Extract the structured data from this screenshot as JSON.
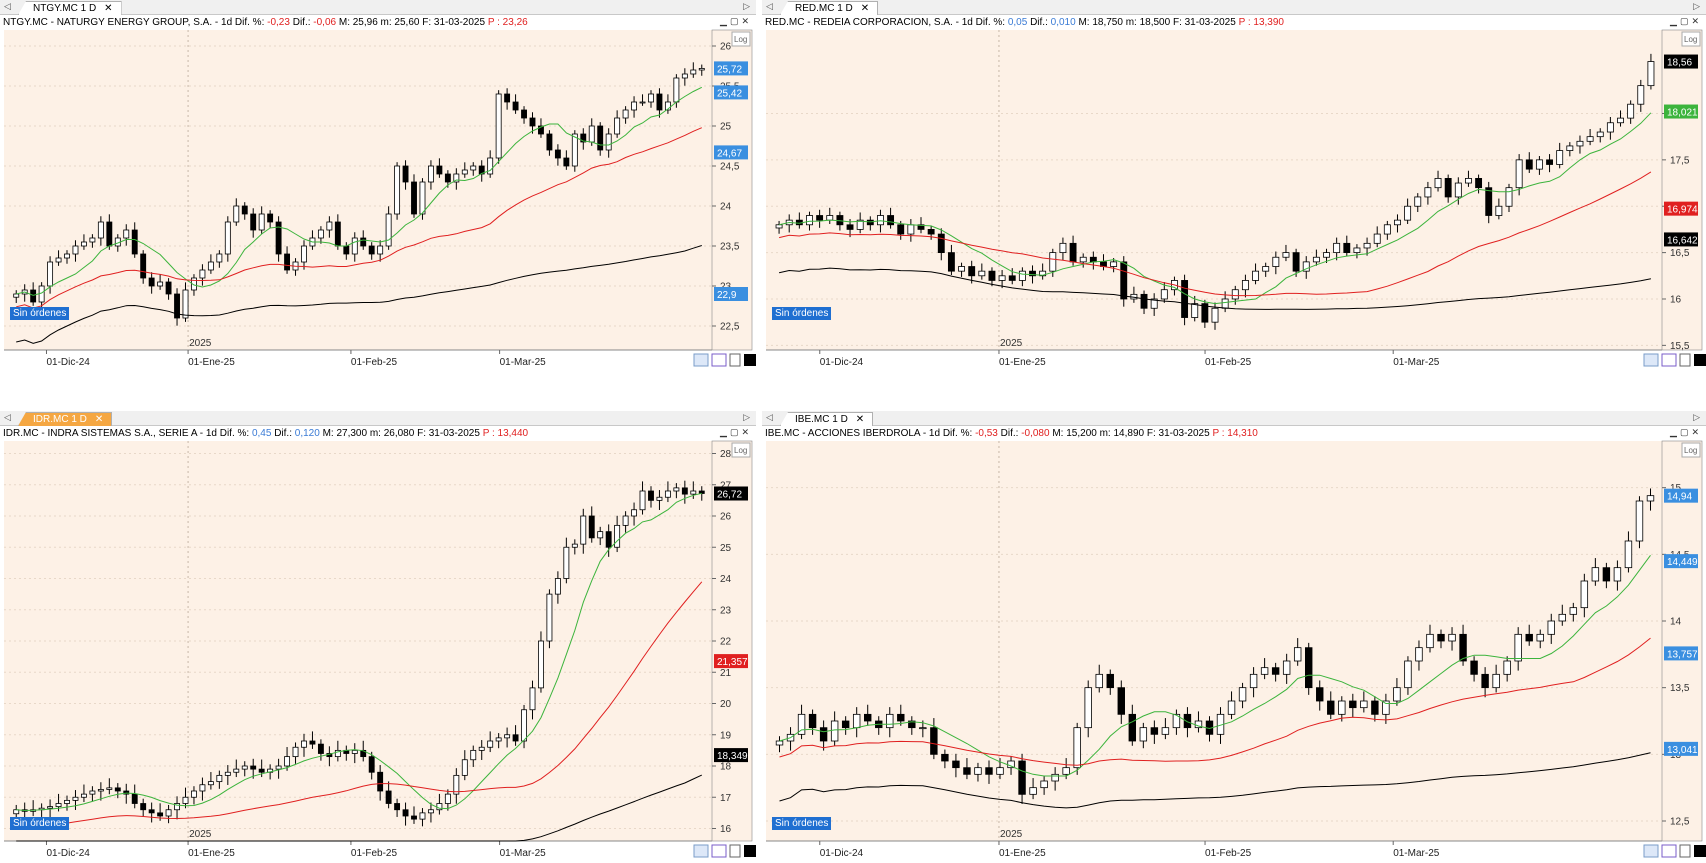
{
  "panels": [
    {
      "tab_label": "NTGY.MC 1 D",
      "tab_active": false,
      "info": {
        "prefix": "NTGY.MC - NATURGY ENERGY GROUP, S.A. -  1d  Dif. %:",
        "dif_pct": "-0,23",
        "dif_label": "Dif.:",
        "dif": "-0,06",
        "rest": "M: 25,96  m: 25,60  F: 31-03-2025",
        "p_label": "P : 23,26"
      },
      "price_tags": [
        {
          "text": "25,72",
          "color": "#3a8fe0"
        },
        {
          "text": "25,42",
          "color": "#3a8fe0"
        },
        {
          "text": "24,67",
          "color": "#3a8fe0"
        },
        {
          "text": "22,9",
          "color": "#3a8fe0"
        }
      ],
      "sin_ordenes": "Sin órdenes",
      "log_label": "Log",
      "chart_data": {
        "type": "candlestick",
        "y_axis_ticks": [
          "26",
          "25,5",
          "25",
          "24,5",
          "24",
          "23,5",
          "23",
          "22,5"
        ],
        "x_axis_labels": [
          "01-Dic-24",
          "01-Ene-25",
          "01-Feb-25",
          "01-Mar-25"
        ],
        "year_marker": "2025",
        "ylim": [
          22.2,
          26.2
        ],
        "series": [
          {
            "values": [
              22.9,
              22.95,
              22.8,
              23.0,
              23.3,
              23.35,
              23.4,
              23.5,
              23.55,
              23.6,
              23.8,
              23.5,
              23.6,
              23.7,
              23.4,
              23.1,
              23.0,
              23.05,
              22.9,
              22.6,
              22.95,
              23.1,
              23.2,
              23.3,
              23.4,
              23.8,
              24.0,
              23.9,
              23.7,
              23.9,
              23.8,
              23.4,
              23.2,
              23.3,
              23.5,
              23.6,
              23.7,
              23.8,
              23.5,
              23.4,
              23.6,
              23.5,
              23.4,
              23.5,
              23.9,
              24.5,
              24.3,
              23.9,
              24.3,
              24.5,
              24.4,
              24.3,
              24.4,
              24.45,
              24.5,
              24.4,
              24.6,
              25.4,
              25.3,
              25.2,
              25.1,
              25.0,
              24.9,
              24.7,
              24.6,
              24.5,
              24.9,
              24.8,
              25.0,
              24.7,
              24.9,
              25.1,
              25.2,
              25.3,
              25.3,
              25.4,
              25.2,
              25.3,
              25.6,
              25.65,
              25.7,
              25.72
            ]
          }
        ],
        "moving_averages": [
          {
            "color": "#3cb43c"
          },
          {
            "color": "#e02020"
          },
          {
            "color": "#000000"
          }
        ]
      }
    },
    {
      "tab_label": "RED.MC 1 D",
      "tab_active": false,
      "info": {
        "prefix": "RED.MC - REDEIA CORPORACION, S.A. -  1d  Dif. %:",
        "dif_pct": "0,05",
        "dif_label": "Dif.:",
        "dif": "0,010",
        "rest": "M: 18,750  m: 18,500  F: 31-03-2025",
        "p_label": "P : 13,390"
      },
      "price_tags": [
        {
          "text": "18,56",
          "color": "#000000"
        },
        {
          "text": "18,021",
          "color": "#3cb43c"
        },
        {
          "text": "16,974",
          "color": "#e02020"
        },
        {
          "text": "16,642",
          "color": "#000000"
        }
      ],
      "sin_ordenes": "Sin órdenes",
      "log_label": "Log",
      "chart_data": {
        "type": "candlestick",
        "y_axis_ticks": [
          "18",
          "17,5",
          "17",
          "16,5",
          "16",
          "15,5"
        ],
        "x_axis_labels": [
          "01-Dic-24",
          "01-Ene-25",
          "01-Feb-25",
          "01-Mar-25"
        ],
        "year_marker": "2025",
        "ylim": [
          15.45,
          18.9
        ],
        "series": [
          {
            "values": [
              16.8,
              16.85,
              16.8,
              16.9,
              16.85,
              16.9,
              16.8,
              16.75,
              16.85,
              16.8,
              16.9,
              16.8,
              16.7,
              16.8,
              16.75,
              16.7,
              16.5,
              16.3,
              16.35,
              16.25,
              16.3,
              16.2,
              16.25,
              16.2,
              16.3,
              16.25,
              16.3,
              16.5,
              16.6,
              16.4,
              16.45,
              16.4,
              16.35,
              16.4,
              16.0,
              16.05,
              15.9,
              16.0,
              16.1,
              16.2,
              15.8,
              15.95,
              15.75,
              15.9,
              16.0,
              16.1,
              16.2,
              16.3,
              16.35,
              16.45,
              16.5,
              16.3,
              16.4,
              16.45,
              16.5,
              16.6,
              16.5,
              16.55,
              16.6,
              16.7,
              16.8,
              16.85,
              17.0,
              17.1,
              17.2,
              17.3,
              17.1,
              17.25,
              17.3,
              17.2,
              16.9,
              17.0,
              17.2,
              17.5,
              17.4,
              17.5,
              17.45,
              17.6,
              17.65,
              17.7,
              17.75,
              17.8,
              17.9,
              17.95,
              18.1,
              18.3,
              18.56
            ]
          }
        ],
        "moving_averages": [
          {
            "color": "#3cb43c"
          },
          {
            "color": "#e02020"
          },
          {
            "color": "#000000"
          }
        ]
      }
    },
    {
      "tab_label": "IDR.MC 1 D",
      "tab_active": true,
      "info": {
        "prefix": "IDR.MC - INDRA SISTEMAS S.A., SERIE A -  1d  Dif. %:",
        "dif_pct": "0,45",
        "dif_label": "Dif.:",
        "dif": "0,120",
        "rest": "M: 27,300  m: 26,080  F: 31-03-2025",
        "p_label": "P : 13,440"
      },
      "price_tags": [
        {
          "text": "26,72",
          "color": "#000000"
        },
        {
          "text": "21,357",
          "color": "#e02020"
        },
        {
          "text": "18,349",
          "color": "#000000"
        }
      ],
      "sin_ordenes": "Sin órdenes",
      "log_label": "Log",
      "chart_data": {
        "type": "candlestick",
        "y_axis_ticks": [
          "28",
          "27",
          "26",
          "25",
          "24",
          "23",
          "22",
          "21",
          "20",
          "19",
          "18",
          "17",
          "16"
        ],
        "x_axis_labels": [
          "01-Dic-24",
          "01-Ene-25",
          "01-Feb-25",
          "01-Mar-25"
        ],
        "year_marker": "2025",
        "ylim": [
          15.6,
          28.4
        ],
        "series": [
          {
            "values": [
              16.6,
              16.55,
              16.6,
              16.65,
              16.7,
              16.8,
              16.9,
              17.0,
              17.1,
              17.2,
              17.25,
              17.3,
              17.2,
              17.1,
              16.8,
              16.6,
              16.5,
              16.4,
              16.6,
              16.8,
              17.0,
              17.2,
              17.4,
              17.5,
              17.7,
              17.8,
              17.9,
              18.0,
              17.9,
              17.8,
              17.9,
              18.0,
              18.3,
              18.6,
              18.8,
              18.7,
              18.4,
              18.3,
              18.5,
              18.4,
              18.5,
              18.3,
              17.8,
              17.2,
              16.8,
              16.6,
              16.4,
              16.3,
              16.5,
              16.6,
              16.8,
              17.1,
              17.7,
              18.2,
              18.5,
              18.6,
              18.8,
              18.9,
              19.0,
              18.8,
              19.8,
              20.5,
              22.0,
              23.5,
              24.0,
              25.0,
              25.1,
              26.0,
              25.3,
              25.5,
              25.0,
              25.7,
              26.0,
              26.2,
              26.8,
              26.5,
              26.6,
              26.8,
              26.9,
              26.7,
              26.8,
              26.72
            ]
          }
        ],
        "moving_averages": [
          {
            "color": "#3cb43c"
          },
          {
            "color": "#e02020"
          },
          {
            "color": "#000000"
          }
        ]
      }
    },
    {
      "tab_label": "IBE.MC 1 D",
      "tab_active": false,
      "info": {
        "prefix": "IBE.MC - ACCIONES IBERDROLA -  1d  Dif. %:",
        "dif_pct": "-0,53",
        "dif_label": "Dif.:",
        "dif": "-0,080",
        "rest": "M: 15,200  m: 14,890  F: 31-03-2025",
        "p_label": "P : 14,310"
      },
      "price_tags": [
        {
          "text": "14,94",
          "color": "#3a8fe0"
        },
        {
          "text": "14,449",
          "color": "#3a8fe0"
        },
        {
          "text": "13,757",
          "color": "#3a8fe0"
        },
        {
          "text": "13,041",
          "color": "#3a8fe0"
        }
      ],
      "sin_ordenes": "Sin órdenes",
      "log_label": "Log",
      "chart_data": {
        "type": "candlestick",
        "y_axis_ticks": [
          "15",
          "14,5",
          "14",
          "13,5",
          "13",
          "12,5"
        ],
        "x_axis_labels": [
          "01-Dic-24",
          "01-Ene-25",
          "01-Feb-25",
          "01-Mar-25"
        ],
        "year_marker": "2025",
        "ylim": [
          12.35,
          15.35
        ],
        "series": [
          {
            "values": [
              13.1,
              13.15,
              13.3,
              13.2,
              13.1,
              13.25,
              13.2,
              13.3,
              13.25,
              13.2,
              13.3,
              13.25,
              13.2,
              13.2,
              13.0,
              12.95,
              12.9,
              12.85,
              12.9,
              12.85,
              12.9,
              12.95,
              12.7,
              12.75,
              12.8,
              12.85,
              12.9,
              13.2,
              13.5,
              13.6,
              13.5,
              13.3,
              13.1,
              13.2,
              13.15,
              13.2,
              13.3,
              13.2,
              13.25,
              13.15,
              13.3,
              13.4,
              13.5,
              13.6,
              13.65,
              13.6,
              13.7,
              13.8,
              13.5,
              13.4,
              13.3,
              13.4,
              13.35,
              13.4,
              13.3,
              13.4,
              13.5,
              13.7,
              13.8,
              13.9,
              13.85,
              13.9,
              13.7,
              13.6,
              13.5,
              13.6,
              13.7,
              13.9,
              13.85,
              13.9,
              14.0,
              14.05,
              14.1,
              14.3,
              14.4,
              14.3,
              14.4,
              14.6,
              14.9,
              14.94
            ]
          }
        ],
        "moving_averages": [
          {
            "color": "#3cb43c"
          },
          {
            "color": "#e02020"
          },
          {
            "color": "#000000"
          }
        ]
      }
    }
  ]
}
